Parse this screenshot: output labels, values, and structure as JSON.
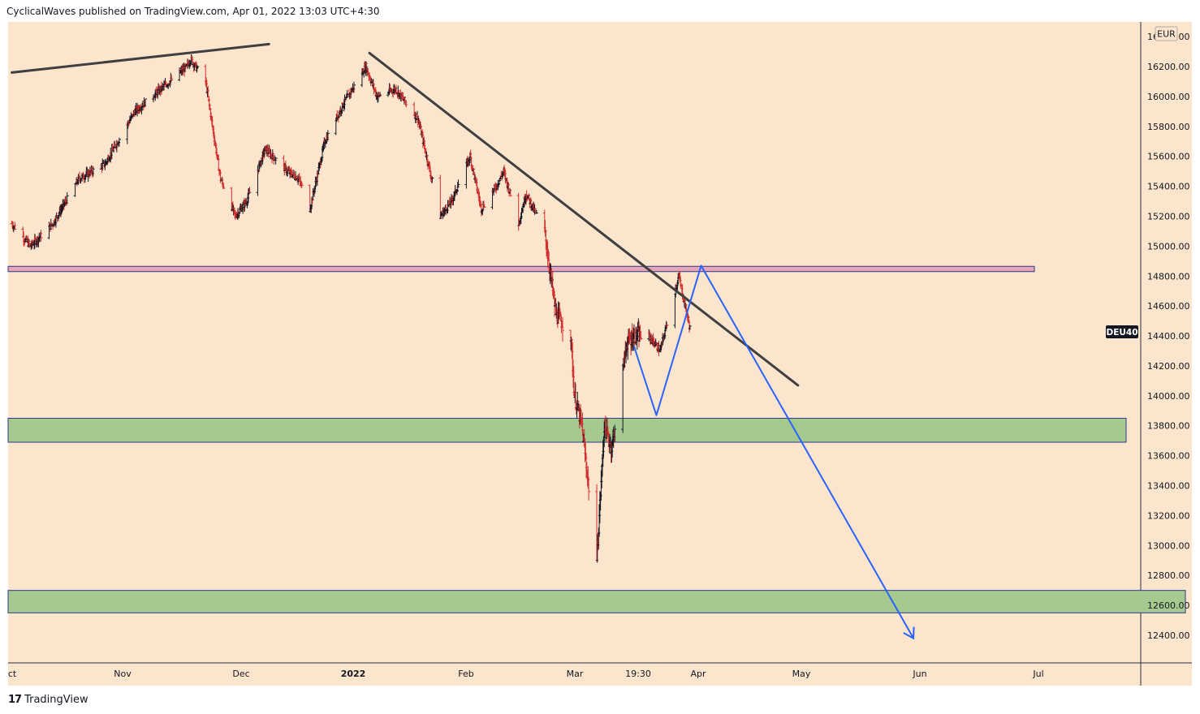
{
  "header": {
    "text": "CyclicalWaves published on TradingView.com, Apr 01, 2022 13:03 UTC+4:30"
  },
  "footer": {
    "logo": "17",
    "brand": "TradingView"
  },
  "colors": {
    "background": "#fbe5cc",
    "candle_up": "#131722",
    "candle_down": "#d32f2f",
    "trendline": "#3f3f3f",
    "projection": "#2962ff",
    "pink_zone": "#e8a6b8",
    "green_zone": "#a5c98e",
    "zone_border": "#2b3a8c",
    "symbol_badge": "#131722"
  },
  "chart_data": {
    "type": "ohlc",
    "symbol": "DEU40",
    "currency": "EUR",
    "ylim": [
      12130,
      16400
    ],
    "y_ticks": [
      12400,
      12600,
      12800,
      13000,
      13200,
      13400,
      13600,
      13800,
      14000,
      14200,
      14400,
      14600,
      14800,
      15000,
      15200,
      15400,
      15600,
      15800,
      16000,
      16200
    ],
    "y_tick_labels": [
      "12400.00",
      "12600.00",
      "12800.00",
      "13000.00",
      "13200.00",
      "13400.00",
      "13600.00",
      "13800.00",
      "14000.00",
      "14200.00",
      "14400.00",
      "14600.00",
      "14800.00",
      "15000.00",
      "15200.00",
      "15400.00",
      "15600.00",
      "15800.00",
      "16000.00",
      "16200.00"
    ],
    "top_tick_partial": "16400.00",
    "x_labels": [
      {
        "text": "ct",
        "bold": false
      },
      {
        "text": "Nov",
        "bold": false
      },
      {
        "text": "Dec",
        "bold": false
      },
      {
        "text": "2022",
        "bold": true
      },
      {
        "text": "Feb",
        "bold": false
      },
      {
        "text": "Mar",
        "bold": false
      },
      {
        "text": "19:30",
        "bold": false
      },
      {
        "text": "Apr",
        "bold": false
      },
      {
        "text": "May",
        "bold": false
      },
      {
        "text": "Jun",
        "bold": false
      },
      {
        "text": "Jul",
        "bold": false
      }
    ],
    "last_price_label": "DEU40",
    "zones": [
      {
        "name": "resistance-zone",
        "color": "pink",
        "low": 14830,
        "high": 14865
      },
      {
        "name": "support-zone-upper",
        "color": "green",
        "low": 13690,
        "high": 13850
      },
      {
        "name": "support-zone-lower",
        "color": "green",
        "low": 12550,
        "high": 12700
      }
    ],
    "trendlines": [
      {
        "name": "upper-channel-line",
        "from": [
          "2021-10-01",
          16160
        ],
        "to": [
          "2021-12-09",
          16350
        ]
      },
      {
        "name": "descending-trendline",
        "from": [
          "2022-01-05",
          16290
        ],
        "to": [
          "2022-04-30",
          14070
        ]
      }
    ],
    "projection_path": [
      [
        "2022-03-17",
        14330
      ],
      [
        "2022-03-23",
        13870
      ],
      [
        "2022-04-04",
        14870
      ],
      [
        "2022-05-31",
        12380
      ]
    ],
    "price_path": [
      [
        "2021-10-01",
        15150
      ],
      [
        "2021-10-06",
        15000
      ],
      [
        "2021-10-12",
        15150
      ],
      [
        "2021-10-19",
        15450
      ],
      [
        "2021-10-26",
        15550
      ],
      [
        "2021-11-03",
        15900
      ],
      [
        "2021-11-10",
        16050
      ],
      [
        "2021-11-17",
        16200
      ],
      [
        "2021-11-18",
        16250
      ],
      [
        "2021-11-22",
        16100
      ],
      [
        "2021-11-26",
        15450
      ],
      [
        "2021-11-30",
        15200
      ],
      [
        "2021-12-03",
        15300
      ],
      [
        "2021-12-08",
        15650
      ],
      [
        "2021-12-14",
        15500
      ],
      [
        "2021-12-17",
        15450
      ],
      [
        "2021-12-20",
        15250
      ],
      [
        "2021-12-24",
        15700
      ],
      [
        "2021-12-29",
        15950
      ],
      [
        "2022-01-04",
        16200
      ],
      [
        "2022-01-07",
        16000
      ],
      [
        "2022-01-12",
        16050
      ],
      [
        "2022-01-18",
        15850
      ],
      [
        "2022-01-24",
        15200
      ],
      [
        "2022-01-27",
        15300
      ],
      [
        "2022-02-01",
        15600
      ],
      [
        "2022-02-04",
        15250
      ],
      [
        "2022-02-08",
        15400
      ],
      [
        "2022-02-10",
        15500
      ],
      [
        "2022-02-14",
        15150
      ],
      [
        "2022-02-16",
        15350
      ],
      [
        "2022-02-21",
        15100
      ],
      [
        "2022-02-24",
        14550
      ],
      [
        "2022-02-28",
        14400
      ],
      [
        "2022-03-01",
        14000
      ],
      [
        "2022-03-03",
        13800
      ],
      [
        "2022-03-07",
        12900
      ],
      [
        "2022-03-09",
        13800
      ],
      [
        "2022-03-11",
        13650
      ],
      [
        "2022-03-15",
        14350
      ],
      [
        "2022-03-17",
        14400
      ],
      [
        "2022-03-21",
        14400
      ],
      [
        "2022-03-24",
        14300
      ],
      [
        "2022-03-29",
        14800
      ],
      [
        "2022-04-01",
        14450
      ]
    ]
  }
}
